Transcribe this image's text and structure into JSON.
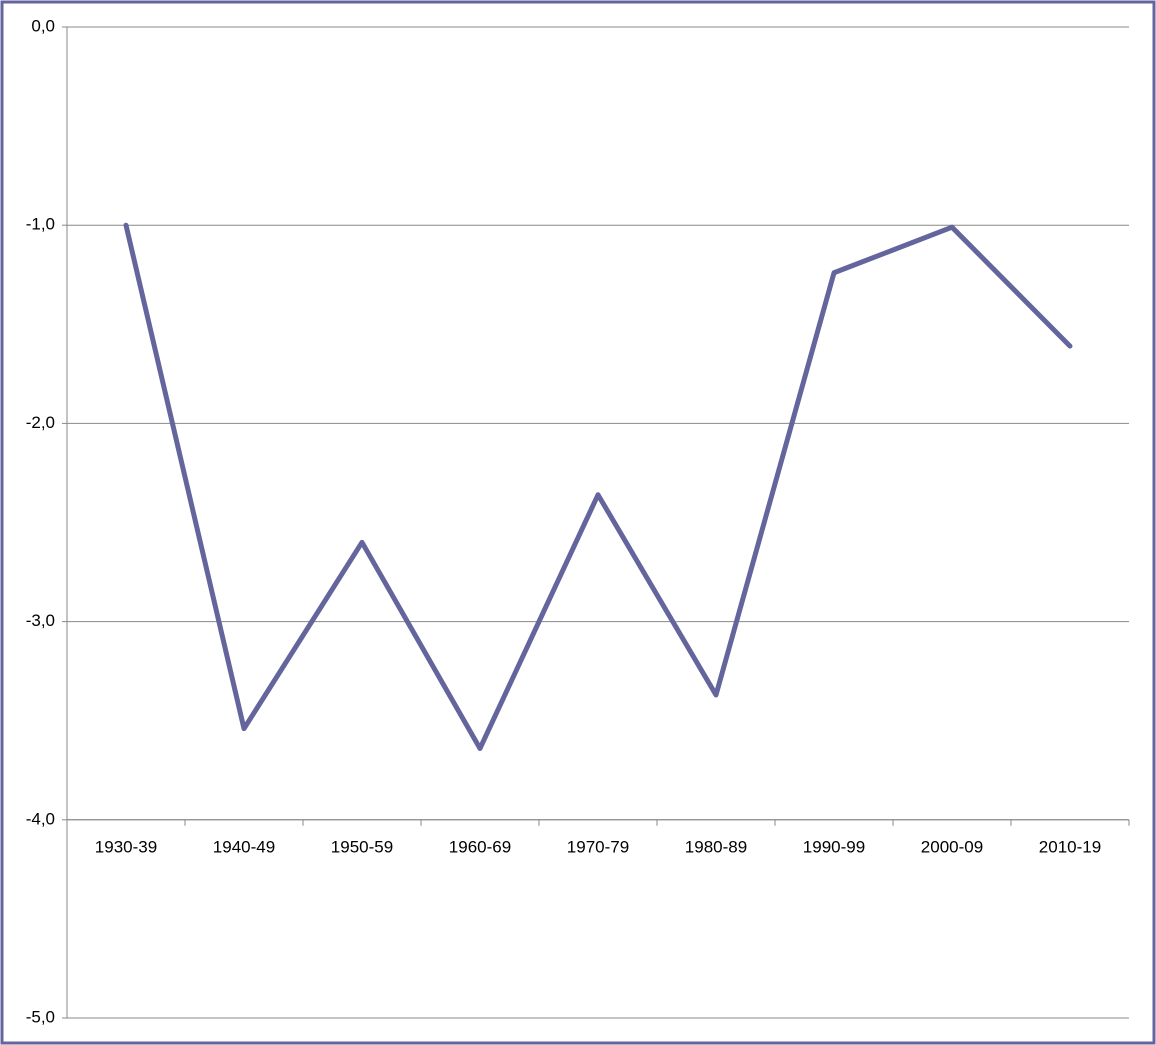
{
  "chart_data": {
    "type": "line",
    "categories": [
      "1930-39",
      "1940-49",
      "1950-59",
      "1960-69",
      "1970-79",
      "1980-89",
      "1990-99",
      "2000-09",
      "2010-19"
    ],
    "series": [
      {
        "color": "#65659e",
        "values": [
          -1.0,
          -3.54,
          -2.6,
          -3.64,
          -2.36,
          -3.37,
          -1.24,
          -1.01,
          -1.61
        ]
      }
    ],
    "ylim": [
      -5,
      0
    ],
    "yticks": [
      {
        "value": 0,
        "label": "0,0"
      },
      {
        "value": -1,
        "label": "-1,0"
      },
      {
        "value": -2,
        "label": "-2,0"
      },
      {
        "value": -3,
        "label": "-3,0"
      },
      {
        "value": -4,
        "label": "-4,0"
      },
      {
        "value": -5,
        "label": "-5,0"
      }
    ],
    "x_axis_crosses": -4,
    "grid": true
  }
}
